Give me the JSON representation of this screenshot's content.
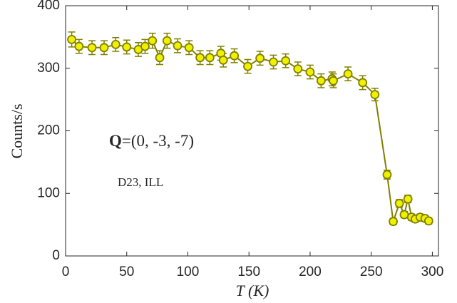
{
  "chart_data": {
    "type": "errorbar",
    "xlabel": "T (K)",
    "ylabel": "Counts/s",
    "annotations": [
      {
        "bold": "Q",
        "text": "=(0, -3, -7)"
      },
      {
        "text": "D23, ILL"
      }
    ],
    "x": [
      5,
      11,
      21.6,
      31.5,
      41,
      50,
      59.5,
      65,
      71,
      77,
      83,
      91.6,
      101,
      110,
      118,
      127,
      129,
      138,
      149,
      159,
      170,
      180,
      190,
      200,
      209,
      218,
      219,
      231,
      243,
      253,
      263,
      268,
      273,
      277,
      280,
      283,
      286,
      290,
      294,
      297
    ],
    "series": [
      {
        "color": "#808000",
        "marker_fill": "#f0f000",
        "values": [
          346,
          335,
          333,
          333,
          338,
          334,
          330,
          335,
          344,
          317,
          344,
          336,
          333,
          317,
          317,
          324,
          313,
          320,
          303,
          316,
          310,
          312,
          299,
          294,
          280,
          283,
          280,
          291,
          277,
          258,
          130,
          55,
          84,
          66,
          91,
          62,
          59,
          62,
          60,
          56
        ],
        "errors": [
          12,
          11,
          11,
          11,
          11,
          11,
          11,
          11,
          12,
          11,
          12,
          11,
          11,
          11,
          11,
          11,
          11,
          11,
          11,
          11,
          11,
          11,
          11,
          11,
          11,
          11,
          11,
          11,
          11,
          10,
          7,
          5,
          6,
          5,
          6,
          5,
          5,
          5,
          5,
          5
        ]
      }
    ],
    "xlim": [
      0,
      305
    ],
    "xticks": [
      0,
      50,
      100,
      150,
      200,
      250,
      300
    ],
    "ylim": [
      0,
      400
    ],
    "yticks": [
      0,
      100,
      200,
      300,
      400
    ],
    "grid": false
  }
}
